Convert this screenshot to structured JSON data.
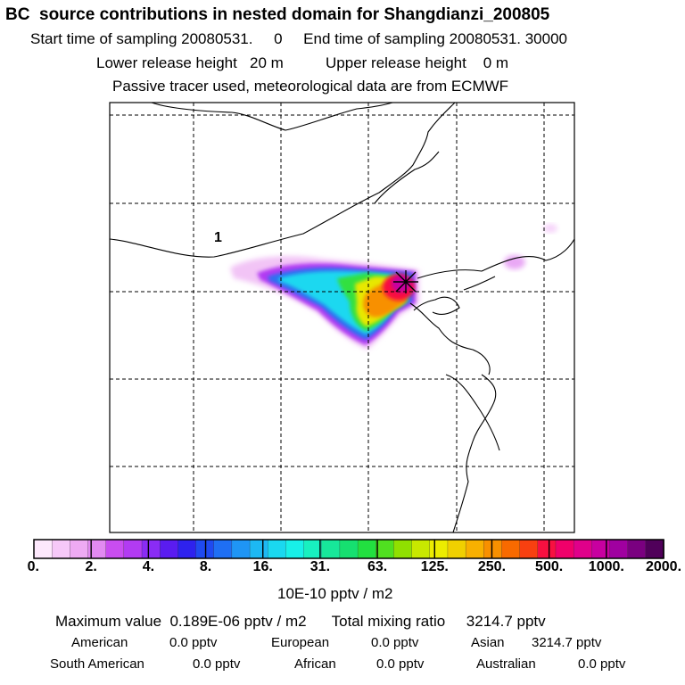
{
  "header": {
    "title": "BC  source contributions in nested domain for Shangdianzi_200805",
    "line2": "Start time of sampling 20080531.     0     End time of sampling 20080531. 30000",
    "line3": "Lower release height   20 m          Upper release height    0 m",
    "line4": "Passive tracer used, meteorological data are from ECMWF"
  },
  "map": {
    "contour_label": "1",
    "receptor_marker": "×"
  },
  "colorbar": {
    "tick_labels": [
      "0.",
      "2.",
      "4.",
      "8.",
      "16.",
      "31.",
      "63.",
      "125.",
      "250.",
      "500.",
      "1000.",
      "2000."
    ],
    "units": "10E-10 pptv / m2",
    "colors": [
      "#fde8fc",
      "#f6c8f8",
      "#eeaaf3",
      "#e28af1",
      "#c94df0",
      "#b23bf2",
      "#8a2cf4",
      "#5a1cf0",
      "#2e22ee",
      "#1f4af0",
      "#1f6ff3",
      "#1f95f5",
      "#1db8f3",
      "#1ad8f0",
      "#18f0e8",
      "#18f0c0",
      "#17e89a",
      "#16e070",
      "#22e040",
      "#50e020",
      "#90e000",
      "#c8e800",
      "#ecec00",
      "#f0d000",
      "#f8b000",
      "#f89000",
      "#f86a00",
      "#f84010",
      "#f81040",
      "#f0006a",
      "#e0008a",
      "#c800a0",
      "#a000a0",
      "#7a0080",
      "#50005a"
    ]
  },
  "stats": {
    "max_label": "Maximum value  0.189E-06 pptv / m2",
    "total_label": "Total mixing ratio     3214.7 pptv",
    "regions": [
      {
        "name": "American",
        "value": "0.0 pptv"
      },
      {
        "name": "European",
        "value": "0.0 pptv"
      },
      {
        "name": "Asian",
        "value": "3214.7 pptv"
      },
      {
        "name": "South American",
        "value": "0.0 pptv"
      },
      {
        "name": "African",
        "value": "0.0 pptv"
      },
      {
        "name": "Australian",
        "value": "0.0 pptv"
      }
    ]
  }
}
